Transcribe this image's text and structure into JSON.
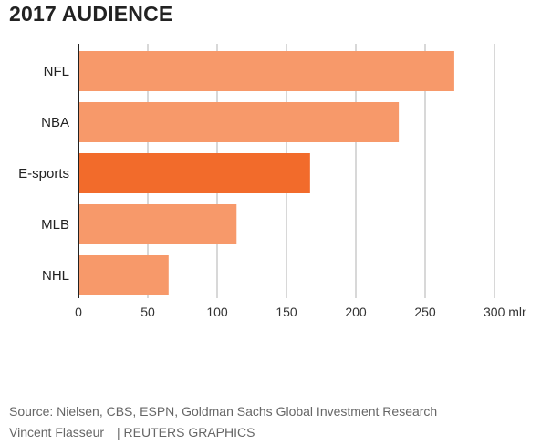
{
  "chart_data": {
    "type": "bar",
    "orientation": "horizontal",
    "title": "2017 AUDIENCE",
    "categories": [
      "NFL",
      "NBA",
      "E-sports",
      "MLB",
      "NHL"
    ],
    "values": [
      271,
      231,
      167,
      114,
      65
    ],
    "highlight": "E-sports",
    "xlim": [
      0,
      300
    ],
    "xticks": [
      0,
      50,
      100,
      150,
      200,
      250,
      300
    ],
    "xtick_labels": [
      "0",
      "50",
      "100",
      "150",
      "200",
      "250",
      "300 mlr"
    ],
    "grid": true,
    "colors": {
      "bar": "#f7996a",
      "highlight": "#f26b2b",
      "grid": "#cccccc",
      "axis": "#222222"
    }
  },
  "footer": {
    "source": "Source: Nielsen, CBS, ESPN, Goldman Sachs Global Investment Research",
    "author": "Vincent Flasseur",
    "credit": "| REUTERS GRAPHICS"
  }
}
